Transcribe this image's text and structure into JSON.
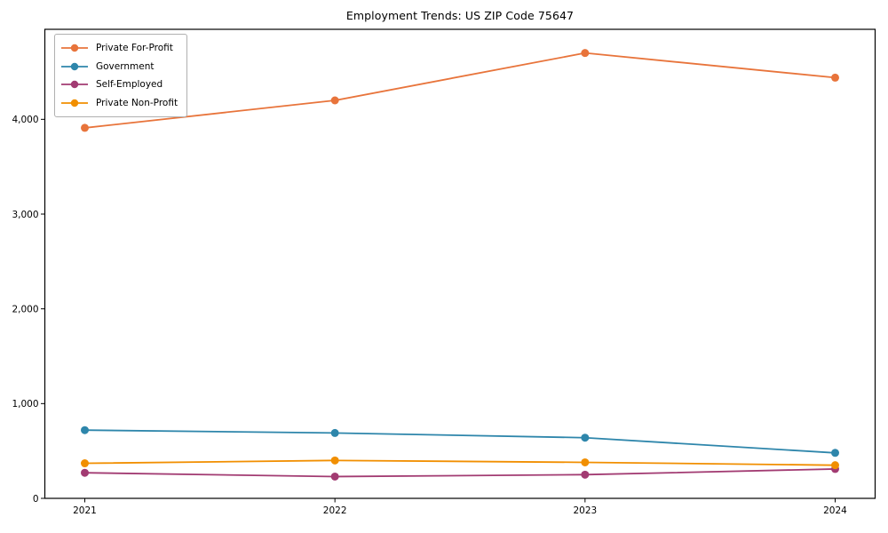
{
  "chart_data": {
    "type": "line",
    "title": "Employment Trends: US ZIP Code 75647",
    "categories": [
      "2021",
      "2022",
      "2023",
      "2024"
    ],
    "series": [
      {
        "name": "Private For-Profit",
        "color": "#e8743b",
        "values": [
          3910,
          4200,
          4700,
          4440
        ]
      },
      {
        "name": "Government",
        "color": "#2e86ab",
        "values": [
          720,
          690,
          640,
          480
        ]
      },
      {
        "name": "Self-Employed",
        "color": "#a23b72",
        "values": [
          270,
          230,
          250,
          310
        ]
      },
      {
        "name": "Private Non-Profit",
        "color": "#f18f01",
        "values": [
          370,
          400,
          380,
          350
        ]
      }
    ],
    "xlabel": "",
    "ylabel": "",
    "ylim": [
      0,
      4950
    ],
    "yticks": [
      0,
      1000,
      2000,
      3000,
      4000
    ],
    "grid": false,
    "legend_position": "upper-left",
    "marker": "circle",
    "axis_color": "#000000",
    "background_color": "#ffffff"
  }
}
